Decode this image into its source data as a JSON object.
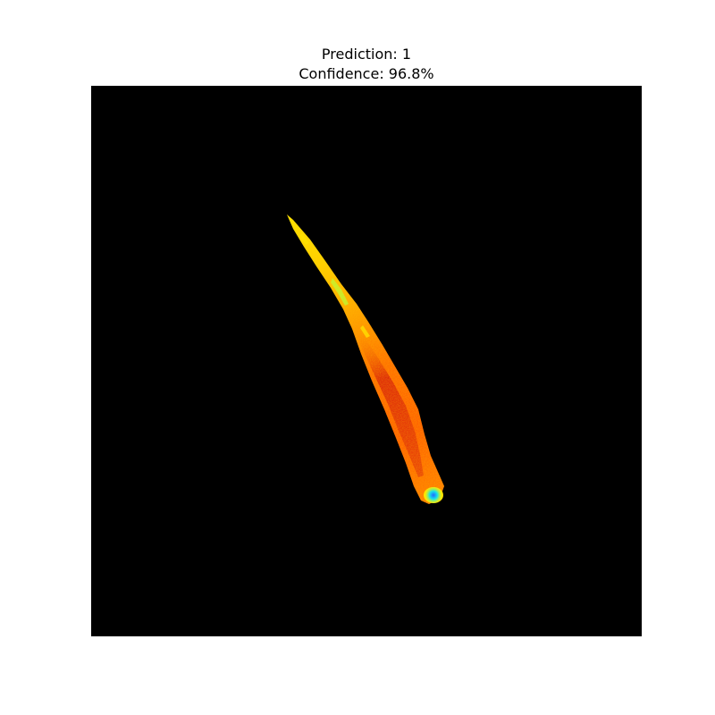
{
  "title": {
    "prediction": "Prediction: 1",
    "confidence": "Confidence: 96.8%"
  },
  "image": {
    "background_color": "#000000",
    "palette": {
      "red": "#d81a0a",
      "orange": "#ff6a00",
      "yellow": "#ffe600",
      "green": "#b6ff3a",
      "cyan": "#19e3e8",
      "blue": "#1f6cff"
    }
  }
}
